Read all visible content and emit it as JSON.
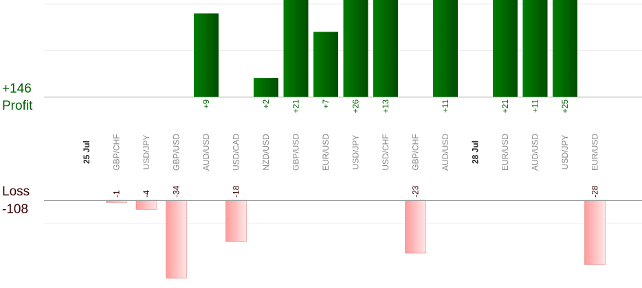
{
  "summary": {
    "profit_total": "+146",
    "profit_label": "Profit",
    "loss_label": "Loss",
    "loss_total": "-108"
  },
  "chart_data": {
    "type": "bar",
    "title": "",
    "xlabel": "",
    "ylabel": "",
    "categories": [
      {
        "kind": "date",
        "label": "25 Jul"
      },
      {
        "kind": "trade",
        "label": "GBP/CHF",
        "value": -1
      },
      {
        "kind": "trade",
        "label": "USD/JPY",
        "value": -4
      },
      {
        "kind": "trade",
        "label": "GBP/USD",
        "value": -34
      },
      {
        "kind": "trade",
        "label": "AUD/USD",
        "value": 9
      },
      {
        "kind": "trade",
        "label": "USD/CAD",
        "value": -18
      },
      {
        "kind": "trade",
        "label": "NZD/USD",
        "value": 2
      },
      {
        "kind": "trade",
        "label": "GBP/USD",
        "value": 21
      },
      {
        "kind": "trade",
        "label": "EUR/USD",
        "value": 7
      },
      {
        "kind": "trade",
        "label": "USD/JPY",
        "value": 26
      },
      {
        "kind": "trade",
        "label": "USD/CHF",
        "value": 13
      },
      {
        "kind": "trade",
        "label": "GBP/CHF",
        "value": -23
      },
      {
        "kind": "trade",
        "label": "AUD/USD",
        "value": 11
      },
      {
        "kind": "date",
        "label": "28 Jul"
      },
      {
        "kind": "trade",
        "label": "EUR/USD",
        "value": 21
      },
      {
        "kind": "trade",
        "label": "AUD/USD",
        "value": 11
      },
      {
        "kind": "trade",
        "label": "USD/JPY",
        "value": 25
      },
      {
        "kind": "trade",
        "label": "EUR/USD",
        "value": -28
      }
    ],
    "profit_axis": {
      "gridline_step": 5,
      "visible_max": 10.5
    },
    "loss_axis": {
      "gridline_step": 10,
      "visible_max": 18.8
    },
    "grid": true,
    "colors": {
      "profit_dark": "#004d00",
      "profit_light": "#008000",
      "loss_dark": "#ff9a9a",
      "loss_light": "#ffe6e6",
      "profit_text": "#006400",
      "loss_text": "#3a0000",
      "category_text": "#888888",
      "date_text": "#222222",
      "baseline": "#999999",
      "grid": "#eeeeee"
    }
  }
}
